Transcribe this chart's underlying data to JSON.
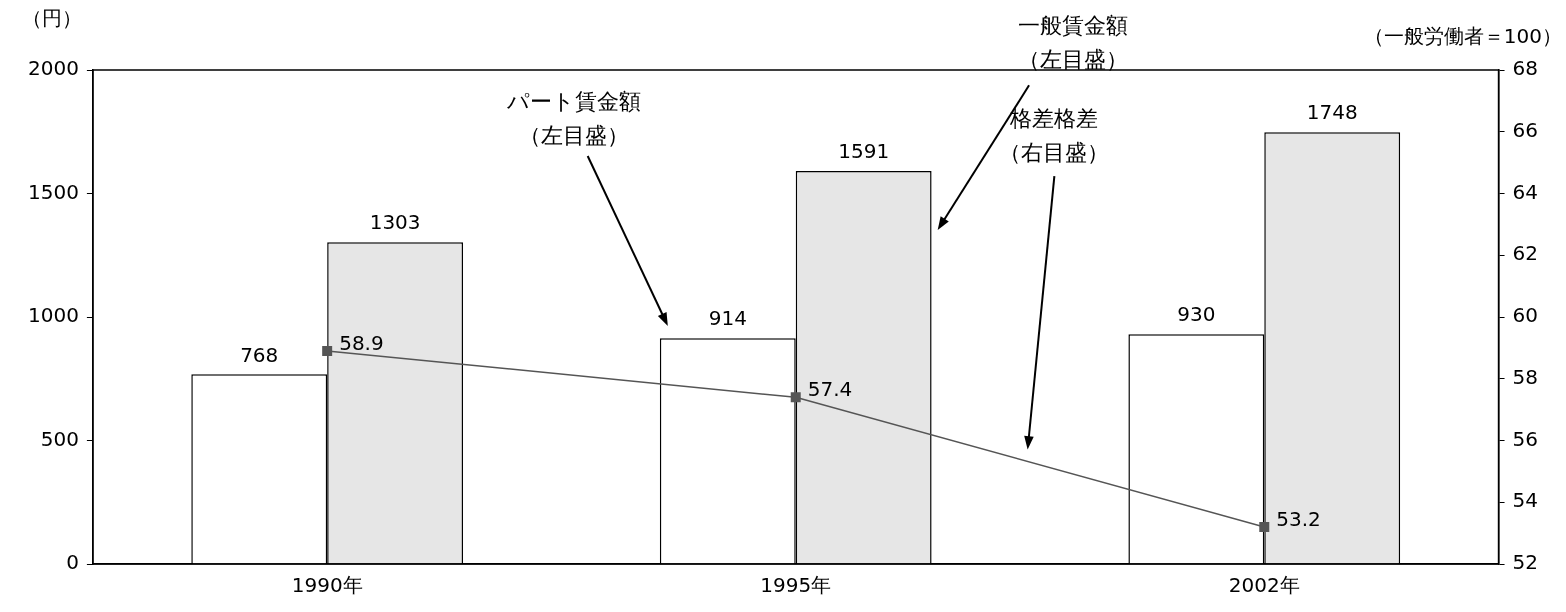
{
  "chart_data": {
    "type": "bar",
    "ylabel": "（円）",
    "y2label": "（一般労働者＝100）",
    "categories": [
      "1990年",
      "1995年",
      "2002年"
    ],
    "series": [
      {
        "color": "#ffffff",
        "values": [
          768,
          914,
          930
        ]
      },
      {
        "color": "#e6e6e6",
        "values": [
          1303,
          1591,
          1748
        ]
      },
      {
        "type": "line",
        "axis": "y2",
        "color": "#555555",
        "values": [
          58.9,
          57.4,
          53.2
        ]
      }
    ],
    "annotations": [
      "パート賃金額（左目盛）",
      "一般賃金額（左目盛）",
      "格差格差（右目盛）"
    ],
    "ylim": [
      0,
      2000
    ],
    "yticks": [
      0,
      500,
      1000,
      1500,
      2000
    ],
    "y2lim": [
      52,
      68
    ],
    "y2ticks": [
      52,
      54,
      56,
      58,
      60,
      62,
      64,
      66,
      68
    ],
    "data_labels": true,
    "legend": false,
    "grid": false,
    "marker": "square",
    "line_style": "solid"
  }
}
